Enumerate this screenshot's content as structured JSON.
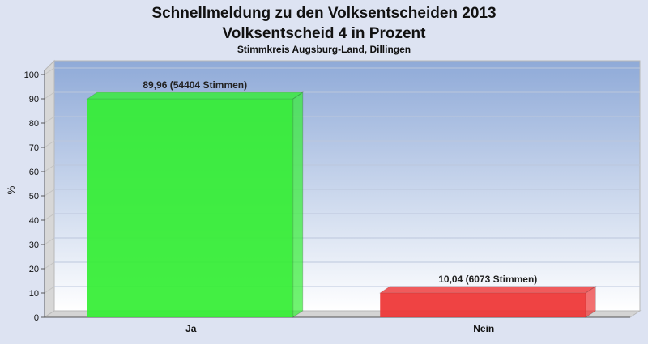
{
  "chart_data": {
    "type": "bar",
    "title": "Schnellmeldung zu den Volksentscheiden 2013",
    "subtitle": "Volksentscheid 4 in Prozent",
    "caption": "Stimmkreis Augsburg-Land, Dillingen",
    "ylabel": "%",
    "xlabel": "",
    "ylim": [
      0,
      100
    ],
    "yticks": [
      0,
      10,
      20,
      30,
      40,
      50,
      60,
      70,
      80,
      90,
      100
    ],
    "grid": true,
    "categories": [
      "Ja",
      "Nein"
    ],
    "values": [
      89.96,
      10.04
    ],
    "data_labels": [
      "89,96 (54404 Stimmen)",
      "10,04 (6073 Stimmen)"
    ],
    "colors": [
      "#33ee33",
      "#ee3333"
    ],
    "background_gradient": [
      "#8faad8",
      "#ffffff"
    ]
  }
}
